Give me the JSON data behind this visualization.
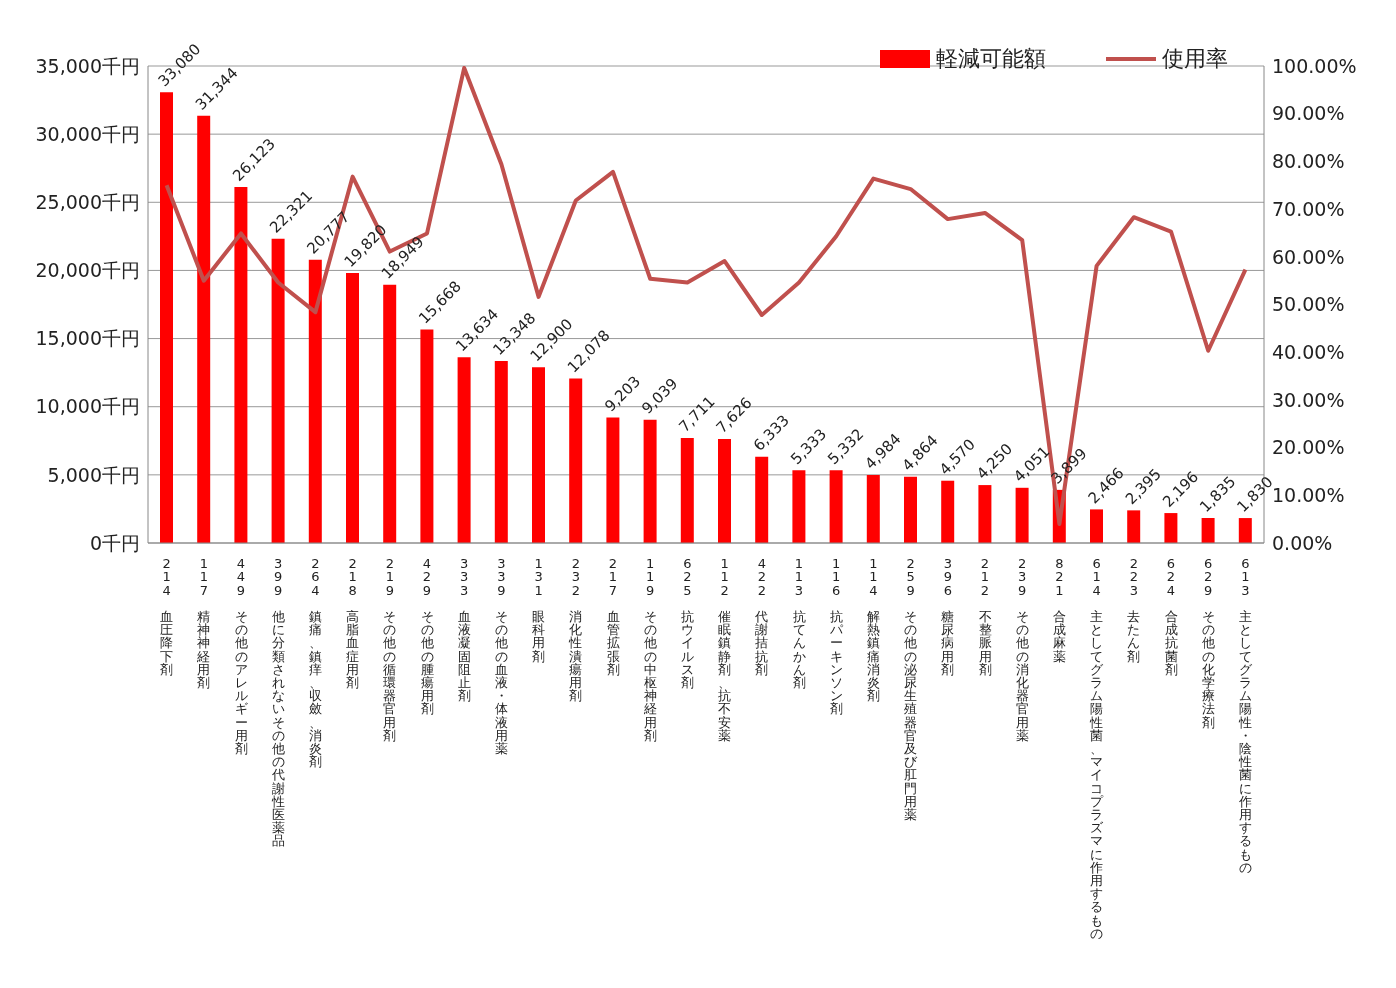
{
  "chart_data": {
    "type": "bar",
    "categories": [
      "214 血圧降下剤",
      "117 精神神経用剤",
      "449 その他のアレルギー用剤",
      "399 他に分類されないその他の代謝性医薬品",
      "264 鎮痛、鎮痒、収斂、消炎剤",
      "218 高脂血症用剤",
      "219 その他の循環器官用剤",
      "429 その他の腫瘍用剤",
      "333 血液凝固阻止剤",
      "339 その他の血液・体液用薬",
      "131 眼科用剤",
      "232 消化性潰瘍用剤",
      "217 血管拡張剤",
      "119 その他の中枢神経用剤",
      "625 抗ウイルス剤",
      "112 催眠鎮静剤、抗不安薬",
      "422 代謝拮抗剤",
      "113 抗てんかん剤",
      "116 抗パーキンソン剤",
      "114 解熱鎮痛消炎剤",
      "259 その他の泌尿生殖器官及び肛門用薬",
      "396 糖尿病用剤",
      "212 不整脈用剤",
      "239 その他の消化器官用薬",
      "821 合成麻薬",
      "614 主としてグラム陽性菌、マイコプラズマに作用するもの",
      "223 去たん剤",
      "624 合成抗菌剤",
      "629 その他の化学療法剤",
      "613 主としてグラム陽性・陰性菌に作用するもの"
    ],
    "series": [
      {
        "name": "軽減可能額",
        "color": "#ff0000",
        "values": [
          33080,
          31344,
          26123,
          22321,
          20777,
          19820,
          18949,
          15668,
          13634,
          13348,
          12900,
          12078,
          9203,
          9039,
          7711,
          7626,
          6333,
          5333,
          5332,
          4984,
          4864,
          4570,
          4250,
          4051,
          3899,
          2466,
          2395,
          2196,
          1835,
          1830
        ],
        "value_labels": [
          "33,080",
          "31,344",
          "26,123",
          "22,321",
          "20,777",
          "19,820",
          "18,949",
          "15,668",
          "13,634",
          "13,348",
          "12,900",
          "12,078",
          "9,203",
          "9,039",
          "7,711",
          "7,626",
          "6,333",
          "5,333",
          "5,332",
          "4,984",
          "4,864",
          "4,570",
          "4,250",
          "4,051",
          "3,899",
          "2,466",
          "2,395",
          "2,196",
          "1,835",
          "1,830"
        ]
      },
      {
        "name": "使用率",
        "type": "line",
        "axis": "y2",
        "color": "#c0504d",
        "marker": "none",
        "values": [
          75.0,
          55.0,
          64.9,
          54.6,
          48.4,
          76.8,
          61.1,
          64.9,
          99.6,
          79.4,
          51.6,
          71.8,
          77.8,
          55.4,
          54.6,
          59.1,
          47.8,
          54.6,
          64.3,
          76.4,
          74.2,
          67.9,
          69.2,
          63.5,
          4.0,
          58.1,
          68.3,
          65.3,
          40.3,
          57.3
        ]
      }
    ],
    "ylim": [
      0,
      35000
    ],
    "yticks": [
      {
        "value": 0,
        "label": "0千円"
      },
      {
        "value": 5000,
        "label": "5,000千円"
      },
      {
        "value": 10000,
        "label": "10,000千円"
      },
      {
        "value": 15000,
        "label": "15,000千円"
      },
      {
        "value": 20000,
        "label": "20,000千円"
      },
      {
        "value": 25000,
        "label": "25,000千円"
      },
      {
        "value": 30000,
        "label": "30,000千円"
      },
      {
        "value": 35000,
        "label": "35,000千円"
      }
    ],
    "y2lim": [
      0,
      100
    ],
    "y2ticks": [
      {
        "value": 0,
        "label": "0.00%"
      },
      {
        "value": 10,
        "label": "10.00%"
      },
      {
        "value": 20,
        "label": "20.00%"
      },
      {
        "value": 30,
        "label": "30.00%"
      },
      {
        "value": 40,
        "label": "40.00%"
      },
      {
        "value": 50,
        "label": "50.00%"
      },
      {
        "value": 60,
        "label": "60.00%"
      },
      {
        "value": 70,
        "label": "70.00%"
      },
      {
        "value": 80,
        "label": "80.00%"
      },
      {
        "value": 90,
        "label": "90.00%"
      },
      {
        "value": 100,
        "label": "100.00%"
      }
    ],
    "grid": "y",
    "legend": "top right"
  }
}
